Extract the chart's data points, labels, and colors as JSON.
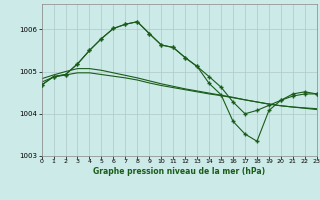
{
  "title": "Graphe pression niveau de la mer (hPa)",
  "background_color": "#cceae7",
  "grid_color": "#b0c8c8",
  "line_color": "#1a5c1a",
  "xlim": [
    0,
    23
  ],
  "ylim": [
    1003,
    1006.6
  ],
  "yticks": [
    1003,
    1004,
    1005,
    1006
  ],
  "xticks": [
    0,
    1,
    2,
    3,
    4,
    5,
    6,
    7,
    8,
    9,
    10,
    11,
    12,
    13,
    14,
    15,
    16,
    17,
    18,
    19,
    20,
    21,
    22,
    23
  ],
  "series1_x": [
    0,
    1,
    2,
    3,
    4,
    5,
    6,
    7,
    8,
    9,
    10,
    11,
    12,
    13,
    14,
    15,
    16,
    17,
    18,
    19,
    20,
    21,
    22,
    23
  ],
  "series1_y": [
    1004.75,
    1004.87,
    1004.92,
    1004.97,
    1004.97,
    1004.93,
    1004.89,
    1004.85,
    1004.8,
    1004.73,
    1004.67,
    1004.62,
    1004.57,
    1004.52,
    1004.47,
    1004.43,
    1004.38,
    1004.33,
    1004.28,
    1004.23,
    1004.19,
    1004.16,
    1004.14,
    1004.12
  ],
  "series2_x": [
    0,
    1,
    2,
    3,
    4,
    5,
    6,
    7,
    8,
    9,
    10,
    11,
    12,
    13,
    14,
    15,
    16,
    17,
    18,
    19,
    20,
    21,
    22,
    23
  ],
  "series2_y": [
    1004.83,
    1004.92,
    1005.0,
    1005.07,
    1005.07,
    1005.03,
    1004.97,
    1004.91,
    1004.85,
    1004.78,
    1004.71,
    1004.65,
    1004.59,
    1004.54,
    1004.49,
    1004.44,
    1004.39,
    1004.33,
    1004.28,
    1004.23,
    1004.19,
    1004.16,
    1004.13,
    1004.1
  ],
  "series3_x": [
    0,
    1,
    2,
    3,
    4,
    5,
    6,
    7,
    8,
    9,
    10,
    11,
    12,
    13,
    14,
    15,
    16,
    17,
    18,
    19,
    20,
    21,
    22,
    23
  ],
  "series3_y": [
    1004.68,
    1004.88,
    1004.93,
    1005.18,
    1005.5,
    1005.78,
    1006.02,
    1006.12,
    1006.18,
    1005.9,
    1005.63,
    1005.57,
    1005.33,
    1005.12,
    1004.88,
    1004.63,
    1004.28,
    1004.0,
    1004.08,
    1004.2,
    1004.32,
    1004.42,
    1004.47,
    1004.47
  ],
  "series4_x": [
    0,
    1,
    2,
    3,
    4,
    5,
    6,
    7,
    8,
    9,
    10,
    11,
    12,
    13,
    14,
    15,
    16,
    17,
    18,
    19,
    20,
    21,
    22,
    23
  ],
  "series4_y": [
    1004.68,
    1004.88,
    1004.93,
    1005.18,
    1005.5,
    1005.78,
    1006.02,
    1006.12,
    1006.18,
    1005.9,
    1005.63,
    1005.57,
    1005.33,
    1005.12,
    1004.72,
    1004.45,
    1003.82,
    1003.52,
    1003.35,
    1004.08,
    1004.32,
    1004.47,
    1004.52,
    1004.47
  ]
}
